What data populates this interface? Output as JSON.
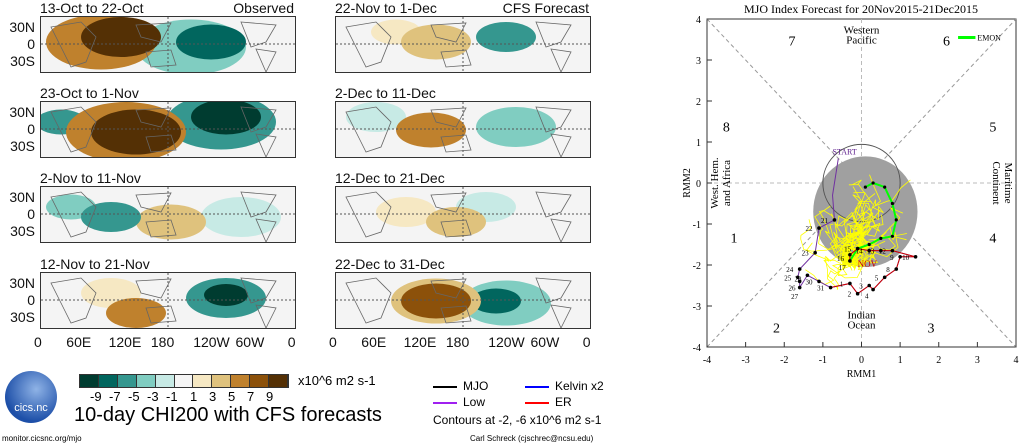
{
  "maps": {
    "panels": [
      {
        "title": "13-Oct to 22-Oct",
        "tag": "Observed"
      },
      {
        "title": "23-Oct to 1-Nov",
        "tag": ""
      },
      {
        "title": "2-Nov to 11-Nov",
        "tag": ""
      },
      {
        "title": "12-Nov to 21-Nov",
        "tag": ""
      },
      {
        "title": "22-Nov to 1-Dec",
        "tag": "CFS Forecast"
      },
      {
        "title": "2-Dec to 11-Dec",
        "tag": ""
      },
      {
        "title": "12-Dec to 21-Dec",
        "tag": ""
      },
      {
        "title": "22-Dec to 31-Dec",
        "tag": ""
      }
    ],
    "lat_labels": [
      "30N",
      "0",
      "30S"
    ],
    "lon_labels": [
      "0",
      "60E",
      "120E",
      "180",
      "120W",
      "60W",
      "0"
    ],
    "colorbar": {
      "ticks": [
        "-9",
        "-7",
        "-5",
        "-3",
        "-1",
        "1",
        "3",
        "5",
        "7",
        "9"
      ],
      "colors": [
        "#003c30",
        "#01665e",
        "#35978f",
        "#80cdc1",
        "#c7eae5",
        "#f5f5f5",
        "#f6e8c3",
        "#dfc27d",
        "#bf812d",
        "#8c510a",
        "#543005"
      ],
      "units": "x10^6 m2 s-1"
    },
    "title": "10-day CHI200 with CFS forecasts",
    "legend": [
      {
        "label": "MJO",
        "color": "#000000"
      },
      {
        "label": "Kelvin x2",
        "color": "#0000ff"
      },
      {
        "label": "Low",
        "color": "#a020f0"
      },
      {
        "label": "ER",
        "color": "#ff0000"
      }
    ],
    "contour_note": "Contours at -2, -6 x10^6 m2 s-1",
    "logo_text": "cics.nc",
    "url": "monitor.cicsnc.org/mjo",
    "credit": "Carl Schreck (cjschrec@ncsu.edu)"
  },
  "chart_data": {
    "type": "line",
    "title": "MJO Index Forecast for 20Nov2015-21Dec2015",
    "xlabel": "RMM1",
    "ylabel": "RMM2",
    "xlim": [
      -4,
      4
    ],
    "ylim": [
      -4,
      4
    ],
    "ticks": [
      "-4",
      "-3",
      "-2",
      "-1",
      "0",
      "1",
      "2",
      "3",
      "4"
    ],
    "phases": [
      "1",
      "2",
      "3",
      "4",
      "5",
      "6",
      "7",
      "8"
    ],
    "regions": {
      "top": [
        "Western",
        "Pacific"
      ],
      "bottom": [
        "Indian",
        "Ocean"
      ],
      "left": [
        "West. Hem.",
        "and Africa"
      ],
      "right": [
        "Maritime",
        "Continent"
      ]
    },
    "legend": [
      {
        "label": "EMON",
        "color": "#00ff00"
      }
    ],
    "annotations": [
      "START",
      "NOV"
    ],
    "observed": {
      "labels": [
        "21",
        "22",
        "23",
        "24",
        "25",
        "26",
        "27",
        "28",
        "30",
        "31",
        "1",
        "2",
        "3",
        "4",
        "5",
        "8",
        "9",
        "10",
        "12",
        "13",
        "14",
        "15",
        "16",
        "17"
      ],
      "x": [
        -0.7,
        -1.1,
        -1.2,
        -1.6,
        -1.65,
        -1.6,
        -1.6,
        -1.4,
        -1.1,
        -0.8,
        -0.3,
        -0.1,
        0.2,
        0.3,
        0.6,
        0.9,
        1.0,
        1.4,
        0.8,
        0.5,
        0.2,
        -0.1,
        -0.3,
        -0.3
      ],
      "y": [
        -0.9,
        -1.1,
        -1.7,
        -2.1,
        -2.3,
        -2.4,
        -2.55,
        -2.25,
        -2.4,
        -2.55,
        -2.45,
        -2.7,
        -2.5,
        -2.6,
        -2.3,
        -2.1,
        -1.8,
        -1.8,
        -1.65,
        -1.65,
        -1.65,
        -1.6,
        -1.75,
        -1.9
      ]
    },
    "ensemble_mean": {
      "x": [
        -0.3,
        -0.1,
        0.2,
        0.5,
        0.8,
        0.9,
        0.8,
        0.6,
        0.3,
        0.1
      ],
      "y": [
        -1.9,
        -1.6,
        -1.5,
        -1.35,
        -1.3,
        -0.9,
        -0.5,
        -0.1,
        0.0,
        -0.1
      ]
    },
    "colors": {
      "ensemble": "#ffff00",
      "spread": "#a0a0a0",
      "observed_recent": "#cc0000",
      "observed_older": "#7030a0",
      "emon": "#00ff00"
    }
  }
}
